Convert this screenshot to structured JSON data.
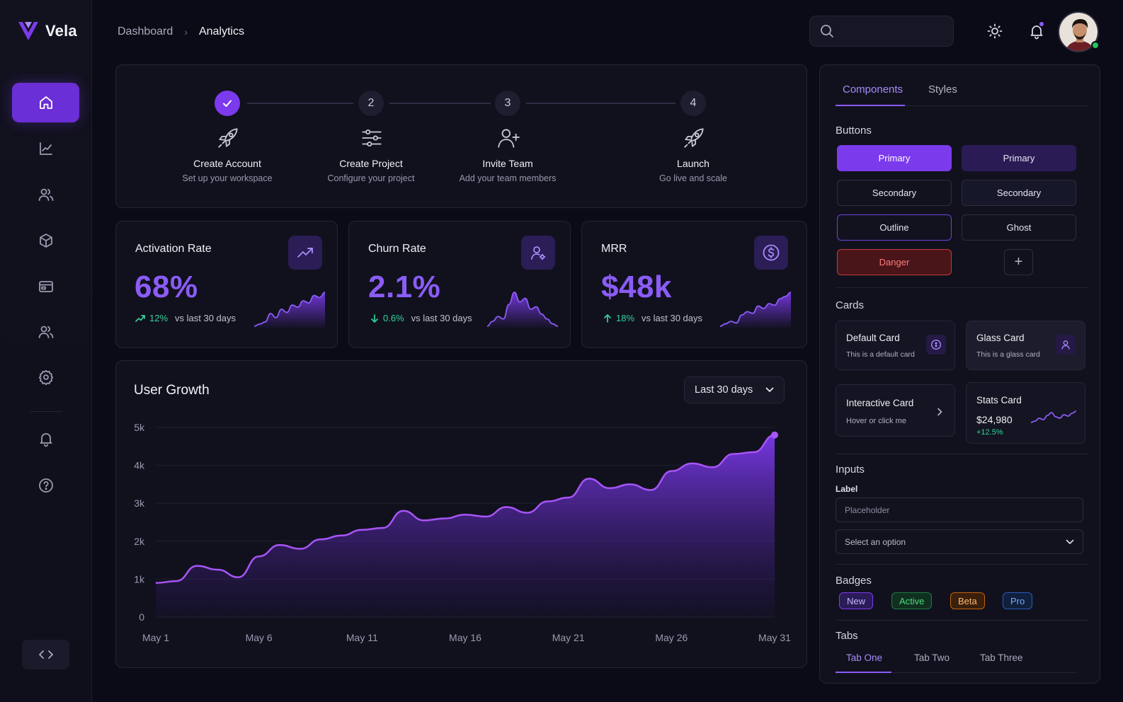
{
  "app": {
    "name": "Vela"
  },
  "breadcrumb": {
    "items": [
      "Dashboard",
      "Analytics"
    ],
    "separator": "›"
  },
  "search": {
    "placeholder": ""
  },
  "sidebar": {
    "items": [
      {
        "icon": "home-icon",
        "active": true
      },
      {
        "icon": "chart-line-icon",
        "active": false
      },
      {
        "icon": "users-icon",
        "active": false
      },
      {
        "icon": "box-icon",
        "active": false
      },
      {
        "icon": "card-icon",
        "active": false
      },
      {
        "icon": "team-icon",
        "active": false
      },
      {
        "icon": "gear-icon",
        "active": false
      },
      {
        "icon": "bell-icon",
        "active": false
      },
      {
        "icon": "help-icon",
        "active": false
      }
    ],
    "footer_icon": "code-icon"
  },
  "steps": [
    {
      "number": "✓",
      "title": "Create Account",
      "subtitle": "Set up your workspace",
      "done": true,
      "icon": "rocket-icon"
    },
    {
      "number": "2",
      "title": "Create Project",
      "subtitle": "Configure your project",
      "done": false,
      "icon": "sliders-icon"
    },
    {
      "number": "3",
      "title": "Invite Team",
      "subtitle": "Add your team members",
      "done": false,
      "icon": "user-plus-icon"
    },
    {
      "number": "4",
      "title": "Launch",
      "subtitle": "Go live and scale",
      "done": false,
      "icon": "rocket-icon"
    }
  ],
  "kpis": [
    {
      "title": "Activation Rate",
      "value": "68%",
      "delta": "12%",
      "delta_dir": "up",
      "vs": "vs last 30 days",
      "icon": "trend-up-icon",
      "spark": [
        18,
        20,
        22,
        30,
        26,
        34,
        31,
        38,
        36,
        42,
        40,
        47,
        45,
        50
      ]
    },
    {
      "title": "Churn Rate",
      "value": "2.1%",
      "delta": "0.6%",
      "delta_dir": "down",
      "vs": "vs last 30 days",
      "icon": "user-gear-icon",
      "spark": [
        18,
        22,
        26,
        24,
        36,
        46,
        38,
        41,
        32,
        34,
        28,
        24,
        20,
        18
      ]
    },
    {
      "title": "MRR",
      "value": "$48k",
      "delta": "18%",
      "delta_dir": "up",
      "vs": "vs last 30 days",
      "icon": "dollar-icon",
      "spark": [
        10,
        13,
        16,
        14,
        24,
        28,
        26,
        35,
        32,
        38,
        36,
        44,
        47,
        52
      ]
    }
  ],
  "growth": {
    "title": "User Growth",
    "range": "Last 30 days",
    "chart_data": {
      "type": "area",
      "title": "User Growth",
      "x": [
        "May 1",
        "May 2",
        "May 3",
        "May 4",
        "May 5",
        "May 6",
        "May 7",
        "May 8",
        "May 9",
        "May 10",
        "May 11",
        "May 12",
        "May 13",
        "May 14",
        "May 15",
        "May 16",
        "May 17",
        "May 18",
        "May 19",
        "May 20",
        "May 21",
        "May 22",
        "May 23",
        "May 24",
        "May 25",
        "May 26",
        "May 27",
        "May 28",
        "May 29",
        "May 30",
        "May 31"
      ],
      "series": [
        {
          "values": [
            900,
            950,
            1350,
            1250,
            1050,
            1600,
            1900,
            1800,
            2050,
            2150,
            2300,
            2350,
            2800,
            2550,
            2600,
            2700,
            2650,
            2900,
            2750,
            3050,
            3150,
            3650,
            3400,
            3500,
            3350,
            3850,
            4050,
            3950,
            4300,
            4350,
            4800
          ]
        }
      ],
      "xticks": [
        "May 1",
        "May 6",
        "May 11",
        "May 16",
        "May 21",
        "May 26",
        "May 31"
      ],
      "yticks": [
        "0",
        "1k",
        "2k",
        "3k",
        "4k",
        "5k"
      ],
      "ylim": [
        0,
        5000
      ],
      "grid": true,
      "color": "#8b5cf6"
    }
  },
  "right_panel": {
    "tabs": [
      {
        "label": "Components",
        "active": true
      },
      {
        "label": "Styles",
        "active": false
      }
    ],
    "sections": {
      "buttons": "Buttons",
      "cards": "Cards",
      "inputs": "Inputs",
      "badges": "Badges",
      "tabs": "Tabs"
    },
    "buttons": {
      "primary": "Primary",
      "primary_dark": "Primary",
      "secondary": "Secondary",
      "secondary_dark": "Secondary",
      "outline": "Outline",
      "ghost": "Ghost",
      "danger": "Danger",
      "plus": "+"
    },
    "cards": {
      "default": {
        "title": "Default Card",
        "subtitle": "This is a default card"
      },
      "glass": {
        "title": "Glass Card",
        "subtitle": "This is a glass card"
      },
      "interactive": {
        "title": "Interactive Card",
        "subtitle": "Hover or click me"
      },
      "stats": {
        "title": "Stats Card",
        "value": "$24,980",
        "delta": "+12.5%",
        "spark": [
          6,
          8,
          12,
          10,
          16,
          20,
          14,
          12,
          17,
          15,
          19,
          22
        ]
      }
    },
    "inputs": {
      "label": "Label",
      "placeholder": "Placeholder",
      "select_placeholder": "Select an option"
    },
    "badges": [
      "New",
      "Active",
      "Beta",
      "Pro"
    ],
    "demo_tabs": [
      {
        "label": "Tab One",
        "active": true
      },
      {
        "label": "Tab Two",
        "active": false
      },
      {
        "label": "Tab Three",
        "active": false
      }
    ]
  },
  "colors": {
    "accent": "#8b5cf6",
    "accent_strong": "#7c3aed",
    "positive": "#34d399",
    "danger": "#ff7b7b"
  }
}
